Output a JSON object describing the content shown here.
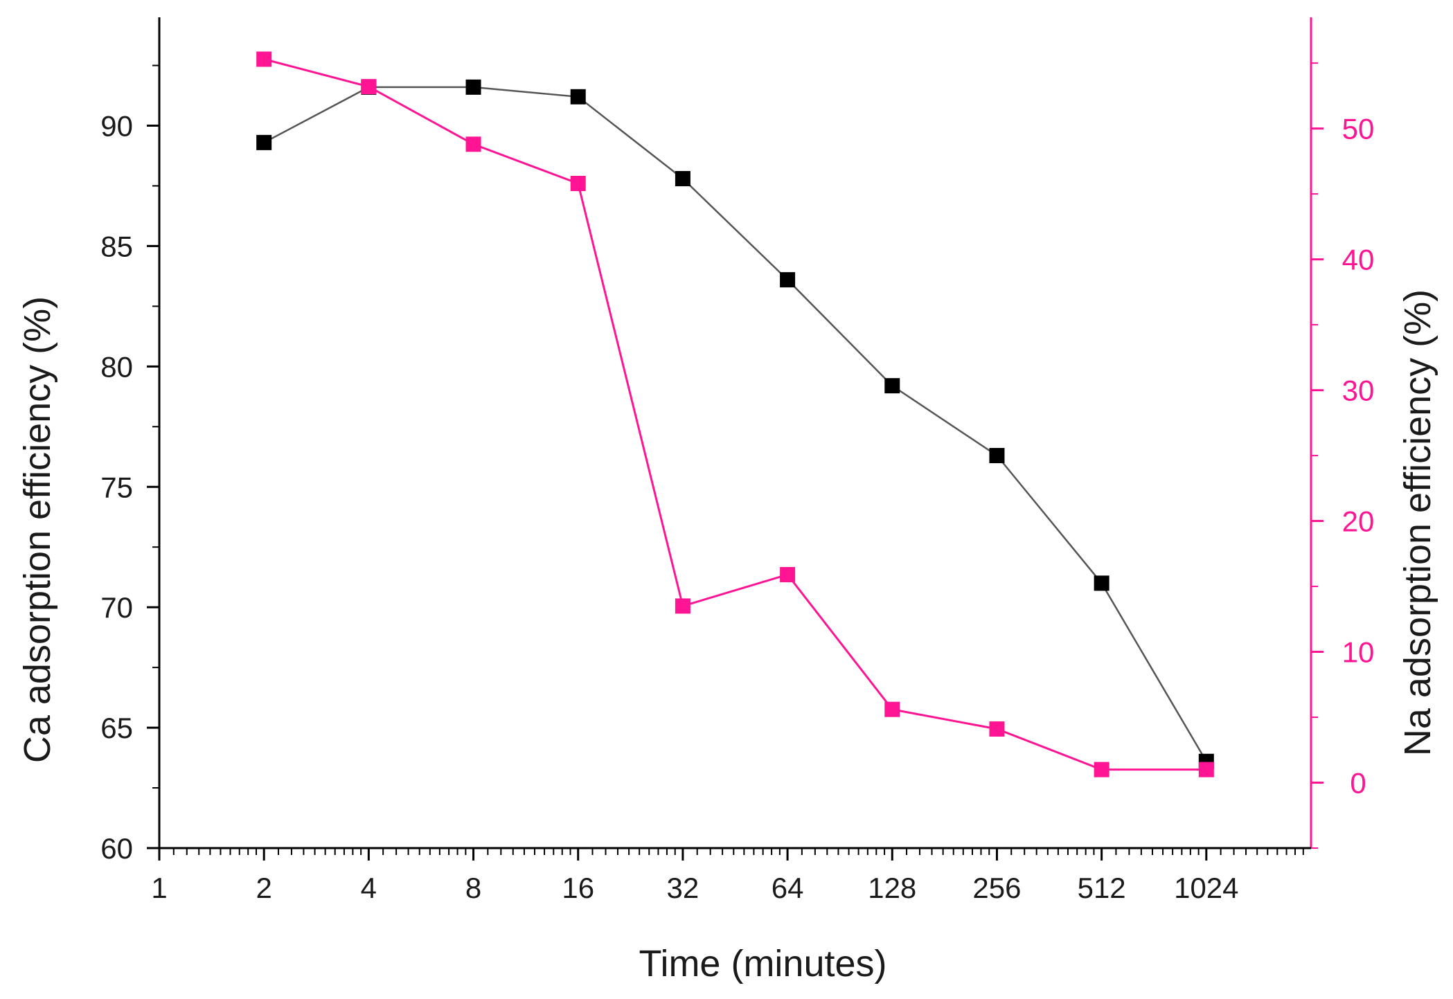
{
  "chart_data": {
    "type": "line",
    "title": "",
    "xlabel": "Time (minutes)",
    "x_scale": "log2",
    "x": [
      2,
      4,
      8,
      16,
      32,
      64,
      128,
      256,
      512,
      1024
    ],
    "x_ticks": [
      1,
      2,
      4,
      8,
      16,
      32,
      64,
      128,
      256,
      512,
      1024
    ],
    "x_tick_labels": [
      "1",
      "2",
      "4",
      "8",
      "16",
      "32",
      "64",
      "128",
      "256",
      "512",
      "1024"
    ],
    "xlim": [
      1,
      2048
    ],
    "series": [
      {
        "name": "Ca",
        "axis": "left",
        "color": "#000000",
        "line_color": "#555555",
        "marker": "square",
        "values": [
          89.3,
          91.6,
          91.6,
          91.2,
          87.8,
          83.6,
          79.2,
          76.3,
          71.0,
          63.6
        ]
      },
      {
        "name": "Na",
        "axis": "right",
        "color": "#ff1493",
        "line_color": "#ff1493",
        "marker": "square",
        "values": [
          55.3,
          53.2,
          48.8,
          45.8,
          13.5,
          15.9,
          5.6,
          4.1,
          1.0,
          1.0
        ]
      }
    ],
    "y_left": {
      "label": "Ca adsorption efficiency (%)",
      "ylim": [
        60,
        94.5
      ],
      "ticks": [
        60,
        65,
        70,
        75,
        80,
        85,
        90
      ],
      "tick_labels": [
        "60",
        "65",
        "70",
        "75",
        "80",
        "85",
        "90"
      ],
      "color": "#000000"
    },
    "y_right": {
      "label": "Na adsorption efficiency (%)",
      "ylim": [
        -5,
        58.5
      ],
      "ticks": [
        0,
        10,
        20,
        30,
        40,
        50
      ],
      "tick_labels": [
        "0",
        "10",
        "20",
        "30",
        "40",
        "50"
      ],
      "color": "#ff1493"
    },
    "legend": "none",
    "grid": false
  }
}
